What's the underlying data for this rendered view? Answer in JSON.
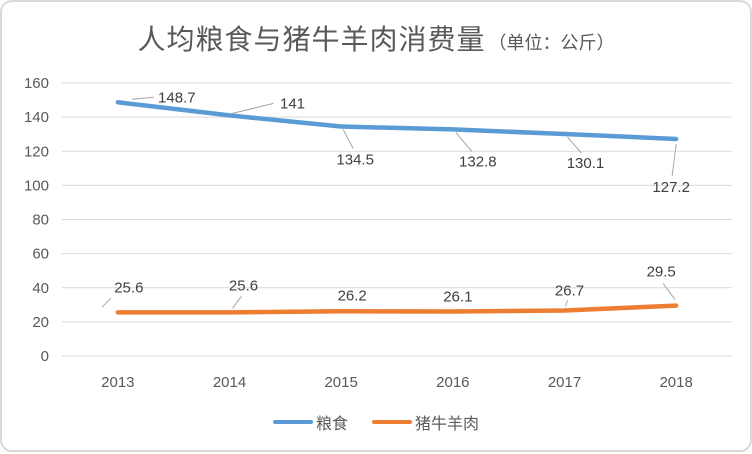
{
  "title": {
    "main": "人均粮食与猪牛羊肉消费量",
    "unit": "（单位：公斤）"
  },
  "chart_data": {
    "type": "line",
    "title": "人均粮食与猪牛羊肉消费量（单位：公斤）",
    "categories": [
      "2013",
      "2014",
      "2015",
      "2016",
      "2017",
      "2018"
    ],
    "series": [
      {
        "name": "粮食",
        "color": "#5B9BD5",
        "values": [
          148.7,
          141,
          134.5,
          132.8,
          130.1,
          127.2
        ],
        "data_labels": [
          "148.7",
          "141",
          "134.5",
          "132.8",
          "130.1",
          "127.2"
        ]
      },
      {
        "name": "猪牛羊肉",
        "color": "#ED7D31",
        "values": [
          25.6,
          25.6,
          26.2,
          26.1,
          26.7,
          29.5
        ],
        "data_labels": [
          "25.6",
          "25.6",
          "26.2",
          "26.1",
          "26.7",
          "29.5"
        ]
      }
    ],
    "ylim": [
      0,
      160
    ],
    "ytick_step": 20,
    "ytick_labels": [
      "0",
      "20",
      "40",
      "60",
      "80",
      "100",
      "120",
      "140",
      "160"
    ],
    "grid": true,
    "legend_position": "bottom"
  },
  "legend": {
    "items": [
      {
        "label": "粮食",
        "color": "#5B9BD5"
      },
      {
        "label": "猪牛羊肉",
        "color": "#ED7D31"
      }
    ]
  },
  "colors": {
    "grid": "#D9D9D9",
    "axis_text": "#595959",
    "data_label_text": "#404040",
    "title_text": "#595959",
    "leader_line": "#A6A6A6",
    "border": "#D9D9D9",
    "background": "#FFFFFF"
  }
}
